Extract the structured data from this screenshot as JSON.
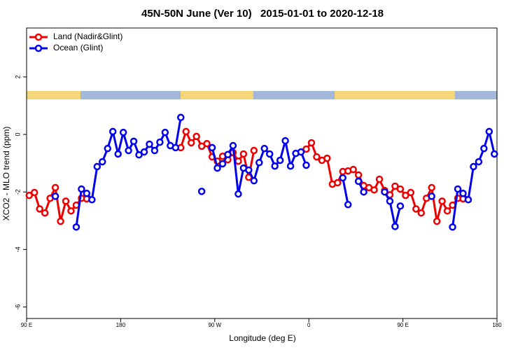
{
  "chart_data": {
    "type": "line",
    "title": "45N-50N June (Ver 10)   2015-01-01 to 2020-12-18",
    "xlabel": "Longitude (deg E)",
    "ylabel": "XCO2 - MLO trend (ppm)",
    "x": [
      92.5,
      97.5,
      102.5,
      107.5,
      112.5,
      117.5,
      122.5,
      127.5,
      132.5,
      137.5,
      142.5,
      147.5,
      152.5,
      157.5,
      162.5,
      167.5,
      172.5,
      177.5,
      182.5,
      187.5,
      192.5,
      197.5,
      202.5,
      207.5,
      212.5,
      217.5,
      222.5,
      227.5,
      232.5,
      237.5,
      242.5,
      247.5,
      252.5,
      257.5,
      262.5,
      267.5,
      272.5,
      277.5,
      282.5,
      287.5,
      292.5,
      297.5,
      302.5,
      307.5,
      312.5,
      317.5,
      322.5,
      327.5,
      332.5,
      337.5,
      342.5,
      347.5,
      352.5,
      357.5,
      362.5,
      367.5,
      372.5,
      377.5,
      382.5,
      387.5,
      392.5,
      397.5,
      402.5,
      407.5,
      412.5,
      417.5,
      422.5,
      427.5,
      432.5,
      437.5,
      442.5,
      447.5,
      452.5,
      457.5,
      462.5,
      467.5,
      472.5,
      477.5,
      482.5,
      487.5,
      492.5,
      497.5,
      502.5,
      507.5,
      512.5,
      517.5,
      522.5,
      527.5,
      532.5,
      537.5
    ],
    "series": [
      {
        "name": "Land (Nadir&Glint)",
        "color": "#ee0000",
        "values": [
          -2.12,
          -2.02,
          -2.59,
          -2.73,
          -2.22,
          -1.85,
          -3.02,
          -2.32,
          -2.66,
          -2.46,
          -2.22,
          -2.24,
          null,
          null,
          null,
          null,
          null,
          null,
          null,
          null,
          null,
          null,
          null,
          null,
          null,
          null,
          null,
          null,
          null,
          -0.46,
          0.1,
          -0.29,
          -0.07,
          -0.41,
          -0.32,
          -0.78,
          -0.93,
          -0.76,
          -0.88,
          -0.63,
          -0.93,
          -0.68,
          -1.49,
          -0.56,
          null,
          null,
          null,
          null,
          null,
          null,
          null,
          null,
          null,
          -0.51,
          -0.29,
          -0.78,
          -0.9,
          -0.83,
          -1.73,
          -1.68,
          -1.29,
          -1.27,
          -1.22,
          -1.41,
          -1.78,
          -1.85,
          -1.93,
          -1.56,
          -1.95,
          -2.1,
          -1.8,
          -1.9,
          -2.12,
          -2.02,
          -2.59,
          -2.73,
          -2.22,
          -1.85,
          -3.02,
          -2.32,
          -2.66,
          -2.46,
          -2.22,
          -2.24,
          null,
          null,
          null,
          null,
          null,
          null
        ]
      },
      {
        "name": "Ocean (Glint)",
        "color": "#0000ee",
        "values": [
          null,
          null,
          null,
          null,
          null,
          -2.15,
          null,
          null,
          null,
          -3.22,
          -1.9,
          -2.05,
          -2.27,
          -1.12,
          -0.95,
          -0.49,
          0.1,
          -0.68,
          0.07,
          -0.56,
          -0.24,
          -0.71,
          -0.61,
          -0.34,
          -0.56,
          -0.27,
          0.07,
          -0.39,
          -0.46,
          0.59,
          null,
          null,
          null,
          -1.98,
          null,
          -0.46,
          -1.17,
          -1.02,
          -0.7,
          -0.39,
          -2.07,
          -1.17,
          -1.24,
          -1.61,
          -0.98,
          -0.49,
          -0.68,
          -1.1,
          -0.9,
          -0.22,
          -1.1,
          -0.66,
          -0.61,
          -1.07,
          null,
          null,
          null,
          null,
          null,
          null,
          -1.51,
          -2.44,
          null,
          -1.63,
          -2.0,
          null,
          null,
          null,
          -2.0,
          -2.32,
          -3.2,
          -2.49,
          null,
          null,
          null,
          null,
          null,
          -2.15,
          null,
          null,
          null,
          -3.22,
          -1.9,
          -2.05,
          -2.27,
          -1.12,
          -0.95,
          -0.49,
          0.1,
          -0.68
        ]
      }
    ],
    "xlim": [
      90,
      540
    ],
    "xticks": [
      {
        "value": 90,
        "label": "90 E"
      },
      {
        "value": 180,
        "label": "180"
      },
      {
        "value": 270,
        "label": "90 W"
      },
      {
        "value": 360,
        "label": "0"
      },
      {
        "value": 450,
        "label": "90 E"
      },
      {
        "value": 540,
        "label": "180"
      }
    ],
    "ylim": [
      -6.4,
      3.7
    ],
    "yticks": [
      -6,
      -4,
      -2,
      0,
      2
    ],
    "legend": "topleft"
  }
}
